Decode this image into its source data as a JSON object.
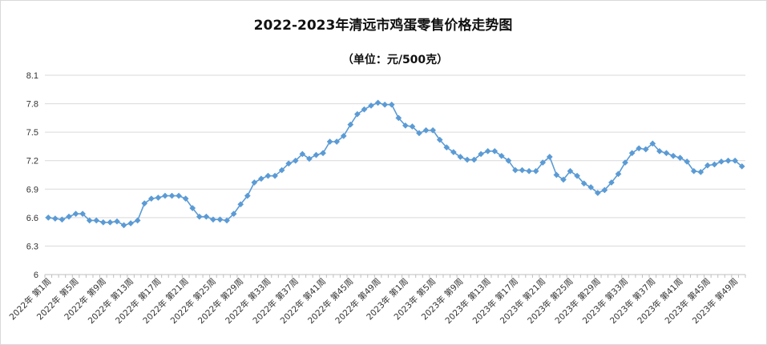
{
  "chart_data": {
    "type": "line",
    "title": "2022-2023年清远市鸡蛋零售价格走势图",
    "subtitle": "（单位：元/500克）",
    "xlabel": "",
    "ylabel": "",
    "ylim": [
      6,
      8.1
    ],
    "yticks": [
      "6",
      "6.3",
      "6.6",
      "6.9",
      "7.2",
      "7.5",
      "7.8",
      "8.1"
    ],
    "grid": true,
    "legend": "none",
    "series_color": "#5B9BD5",
    "tick_labels": [
      "2022年 第1周",
      "2022年 第5周",
      "2022年 第9周",
      "2022年 第13周",
      "2022年 第17周",
      "2022年 第21周",
      "2022年 第25周",
      "2022年 第29周",
      "2022年 第33周",
      "2022年 第37周",
      "2022年 第41周",
      "2022年 第45周",
      "2022年 第49周",
      "2023年 第1周",
      "2023年 第5周",
      "2023年 第9周",
      "2023年 第13周",
      "2023年 第17周",
      "2023年 第21周",
      "2023年 第25周",
      "2023年 第29周",
      "2023年 第33周",
      "2023年 第37周",
      "2023年 第41周",
      "2023年 第45周",
      "2023年 第49周"
    ],
    "series": [
      {
        "values": [
          6.6,
          6.59,
          6.58,
          6.61,
          6.64,
          6.64,
          6.57,
          6.57,
          6.55,
          6.55,
          6.56,
          6.52,
          6.54,
          6.57,
          6.75,
          6.8,
          6.81,
          6.83,
          6.83,
          6.83,
          6.8,
          6.7,
          6.61,
          6.61,
          6.58,
          6.58,
          6.57,
          6.64,
          6.74,
          6.83,
          6.97,
          7.01,
          7.04,
          7.04,
          7.1,
          7.17,
          7.2,
          7.27,
          7.22,
          7.26,
          7.28,
          7.4,
          7.4,
          7.46,
          7.58,
          7.69,
          7.74,
          7.78,
          7.81,
          7.79,
          7.79,
          7.65,
          7.57,
          7.56,
          7.49,
          7.52,
          7.52,
          7.42,
          7.34,
          7.29,
          7.24,
          7.21,
          7.21,
          7.27,
          7.3,
          7.3,
          7.25,
          7.2,
          7.1,
          7.1,
          7.09,
          7.09,
          7.18,
          7.24,
          7.05,
          7.0,
          7.09,
          7.04,
          6.96,
          6.92,
          6.86,
          6.89,
          6.97,
          7.06,
          7.18,
          7.28,
          7.33,
          7.32,
          7.38,
          7.3,
          7.28,
          7.25,
          7.23,
          7.19,
          7.09,
          7.08,
          7.15,
          7.16,
          7.19,
          7.2,
          7.2,
          7.14
        ]
      }
    ]
  }
}
